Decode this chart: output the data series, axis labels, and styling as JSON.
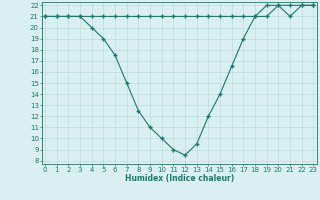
{
  "x": [
    0,
    1,
    2,
    3,
    4,
    5,
    6,
    7,
    8,
    9,
    10,
    11,
    12,
    13,
    14,
    15,
    16,
    17,
    18,
    19,
    20,
    21,
    22,
    23
  ],
  "line1": [
    21,
    21,
    21,
    21,
    20,
    19,
    17.5,
    15,
    12.5,
    11,
    10,
    9,
    8.5,
    9.5,
    12,
    14,
    16.5,
    19,
    21,
    21,
    22,
    21,
    22,
    22
  ],
  "line2": [
    21,
    21,
    21,
    21,
    21,
    21,
    21,
    21,
    21,
    21,
    21,
    21,
    21,
    21,
    21,
    21,
    21,
    21,
    21,
    22,
    22,
    22,
    22,
    22
  ],
  "line_color": "#1a7a6e",
  "bg_color": "#d9eff0",
  "grid_color": "#b8d8d8",
  "xlabel": "Humidex (Indice chaleur)",
  "ylim_min": 8,
  "ylim_max": 22,
  "xlim_min": 0,
  "xlim_max": 23,
  "yticks": [
    8,
    9,
    10,
    11,
    12,
    13,
    14,
    15,
    16,
    17,
    18,
    19,
    20,
    21,
    22
  ],
  "xticks": [
    0,
    1,
    2,
    3,
    4,
    5,
    6,
    7,
    8,
    9,
    10,
    11,
    12,
    13,
    14,
    15,
    16,
    17,
    18,
    19,
    20,
    21,
    22,
    23
  ],
  "tick_fontsize": 5,
  "xlabel_fontsize": 5.5,
  "marker": "+",
  "markersize": 3.5,
  "linewidth": 0.8
}
